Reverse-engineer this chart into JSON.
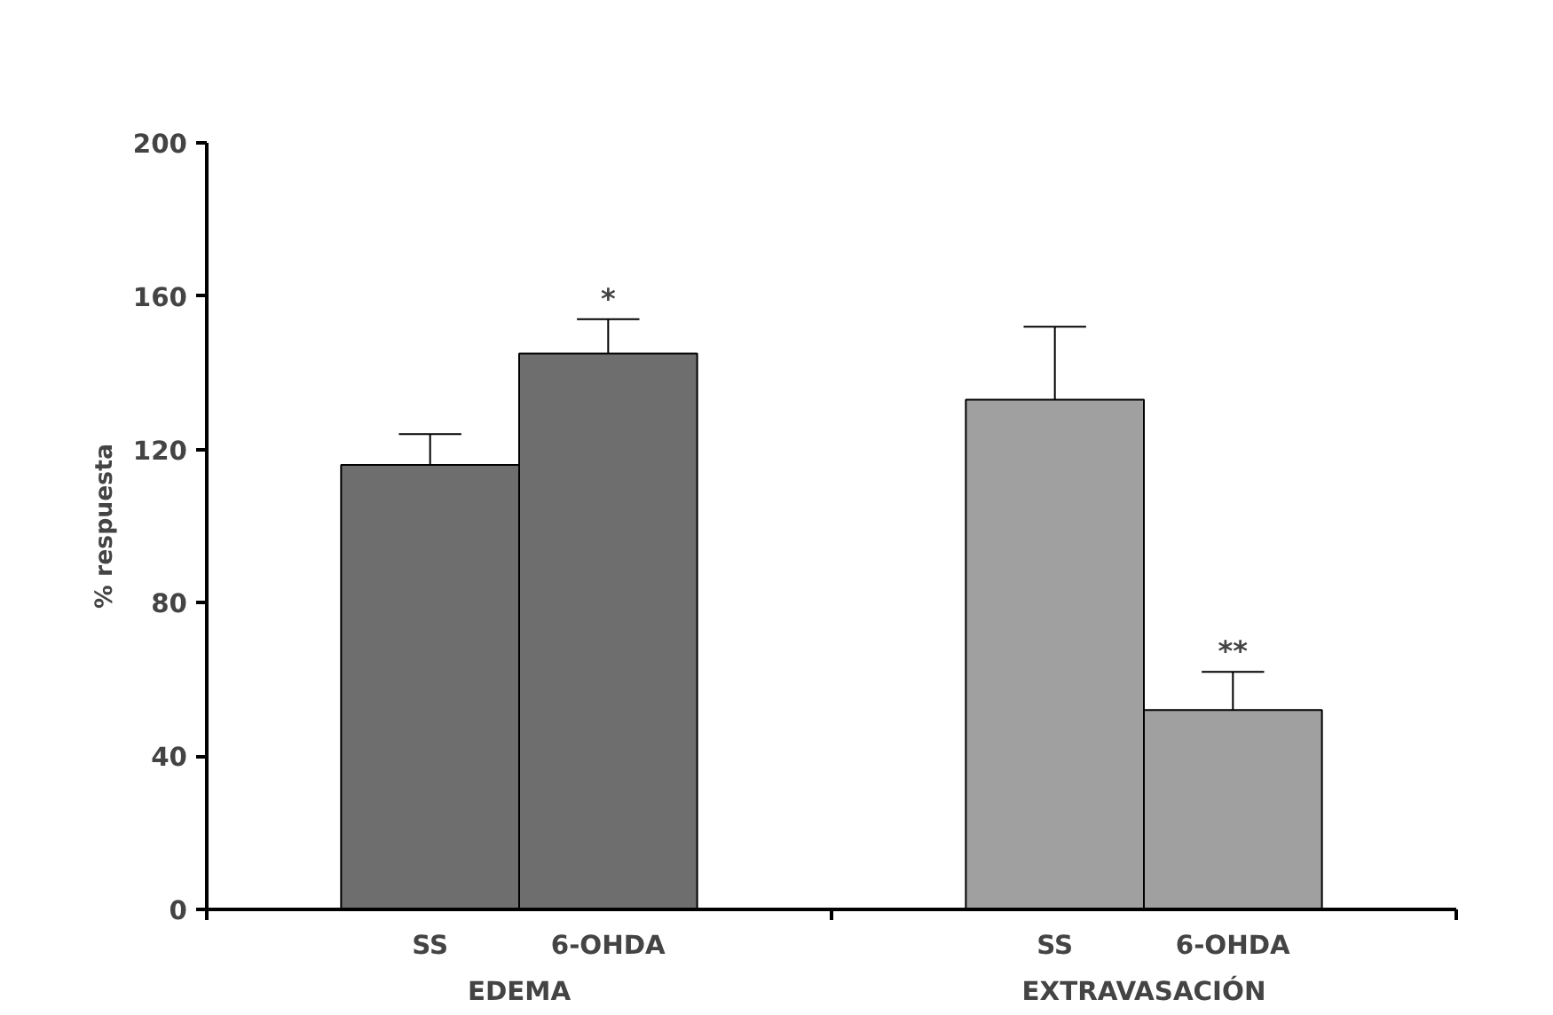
{
  "chart_data": {
    "type": "bar",
    "ylabel": "% respuesta",
    "categories": [
      "EDEMA",
      "EXTRAVASACIÓN"
    ],
    "series": [
      {
        "name": "SS",
        "colors": [
          "#6e6e6e",
          "#a0a0a0"
        ],
        "values": [
          116,
          133
        ],
        "errors": [
          [
            116,
            124
          ],
          [
            133,
            152
          ]
        ],
        "value_labels": [
          null,
          null
        ]
      },
      {
        "name": "6-OHDA",
        "colors": [
          "#6e6e6e",
          "#a0a0a0"
        ],
        "values": [
          145,
          52
        ],
        "errors": [
          [
            145,
            154
          ],
          [
            52,
            62
          ]
        ],
        "value_labels": [
          "*",
          "**"
        ]
      }
    ],
    "ylim": [
      0,
      200
    ],
    "yticks": [
      0,
      40,
      80,
      120,
      160,
      200
    ],
    "grid": false,
    "legend": false
  }
}
